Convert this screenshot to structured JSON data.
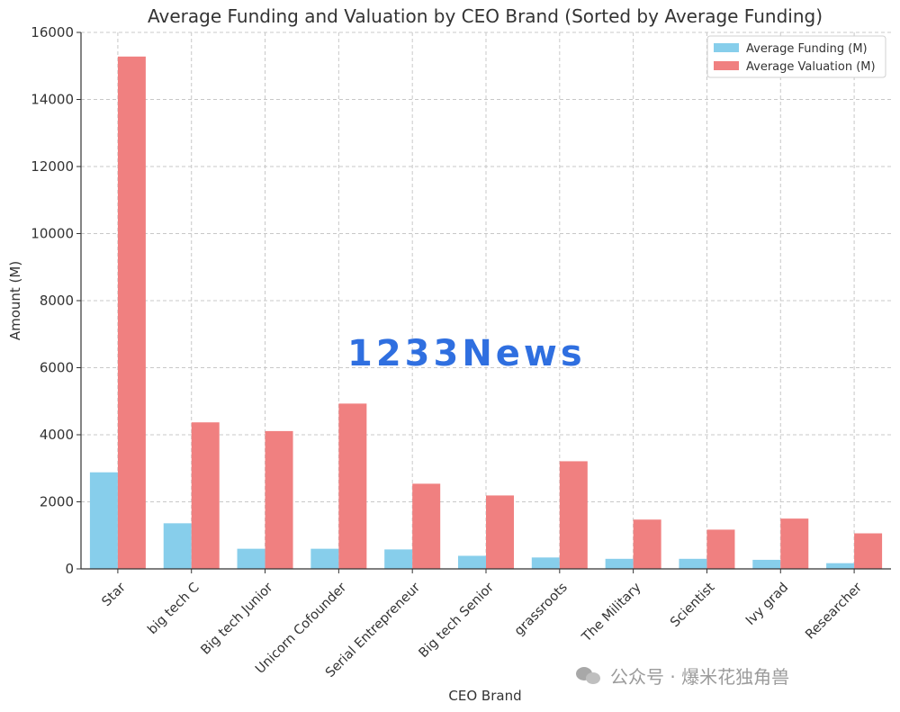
{
  "chart_data": {
    "type": "bar",
    "title": "Average Funding and Valuation by CEO Brand (Sorted by Average Funding)",
    "xlabel": "CEO Brand",
    "ylabel": "Amount (M)",
    "ylim": [
      0,
      16000
    ],
    "yticks": [
      0,
      2000,
      4000,
      6000,
      8000,
      10000,
      12000,
      14000,
      16000
    ],
    "grid": true,
    "legend_position": "top-right",
    "categories": [
      "Star",
      "big tech C",
      "Big tech Junior",
      "Unicorn Cofounder",
      "Serial Entrepreneur",
      "Big tech Senior",
      "grassroots",
      "The Military",
      "Scientist",
      "Ivy grad",
      "Researcher"
    ],
    "series": [
      {
        "name": "Average Funding (M)",
        "color": "#87ceeb",
        "values": [
          2880,
          1360,
          600,
          600,
          580,
          390,
          340,
          300,
          300,
          270,
          170
        ]
      },
      {
        "name": "Average Valuation (M)",
        "color": "#f08080",
        "values": [
          15280,
          4370,
          4110,
          4930,
          2540,
          2190,
          3210,
          1470,
          1170,
          1500,
          1060
        ]
      }
    ]
  },
  "watermarks": {
    "brand": "1233News",
    "wechat": "公众号 · 爆米花独角兽"
  }
}
